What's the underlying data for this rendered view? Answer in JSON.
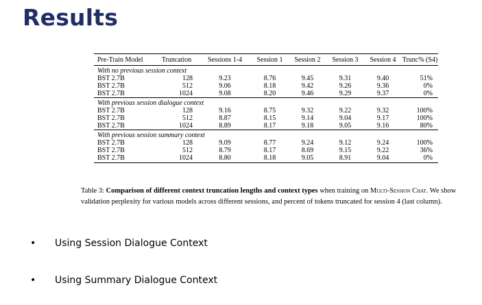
{
  "title": "Results",
  "table": {
    "headers": [
      "Pre-Train Model",
      "Truncation",
      "Sessions 1-4",
      "Session 1",
      "Session 2",
      "Session 3",
      "Session 4",
      "Trunc% (S4)"
    ],
    "groups": [
      {
        "label": "With no previous session context",
        "rows": [
          [
            "BST 2.7B",
            "128",
            "9.23",
            "8.76",
            "9.45",
            "9.31",
            "9.40",
            "51%"
          ],
          [
            "BST 2.7B",
            "512",
            "9.06",
            "8.18",
            "9.42",
            "9.26",
            "9.36",
            "0%"
          ],
          [
            "BST 2.7B",
            "1024",
            "9.08",
            "8.20",
            "9.46",
            "9.29",
            "9.37",
            "0%"
          ]
        ]
      },
      {
        "label": "With previous session dialogue context",
        "rows": [
          [
            "BST 2.7B",
            "128",
            "9.16",
            "8.75",
            "9.32",
            "9.22",
            "9.32",
            "100%"
          ],
          [
            "BST 2.7B",
            "512",
            "8.87",
            "8.15",
            "9.14",
            "9.04",
            "9.17",
            "100%"
          ],
          [
            "BST 2.7B",
            "1024",
            "8.89",
            "8.17",
            "9.18",
            "9.05",
            "9.16",
            "80%"
          ]
        ]
      },
      {
        "label": "With previous session summary context",
        "rows": [
          [
            "BST 2.7B",
            "128",
            "9.09",
            "8.77",
            "9.24",
            "9.12",
            "9.24",
            "100%"
          ],
          [
            "BST 2.7B",
            "512",
            "8.79",
            "8.17",
            "8.69",
            "9.15",
            "9.22",
            "36%"
          ],
          [
            "BST 2.7B",
            "1024",
            "8.80",
            "8.18",
            "9.05",
            "8.91",
            "9.04",
            "0%"
          ]
        ]
      }
    ]
  },
  "caption": {
    "label": "Table 3: ",
    "bold": "Comparison of different context truncation lengths and context types",
    "text1": " when training on ",
    "dataset": "Multi-Session Chat",
    "text2": ". We show validation perplexity for various models across different sessions, and percent of tokens truncated for session 4 (last column)."
  },
  "bullets": [
    {
      "symbol": "•",
      "text": "Using Session Dialogue Context"
    },
    {
      "symbol": "•",
      "text": "Using Summary Dialogue Context"
    }
  ]
}
